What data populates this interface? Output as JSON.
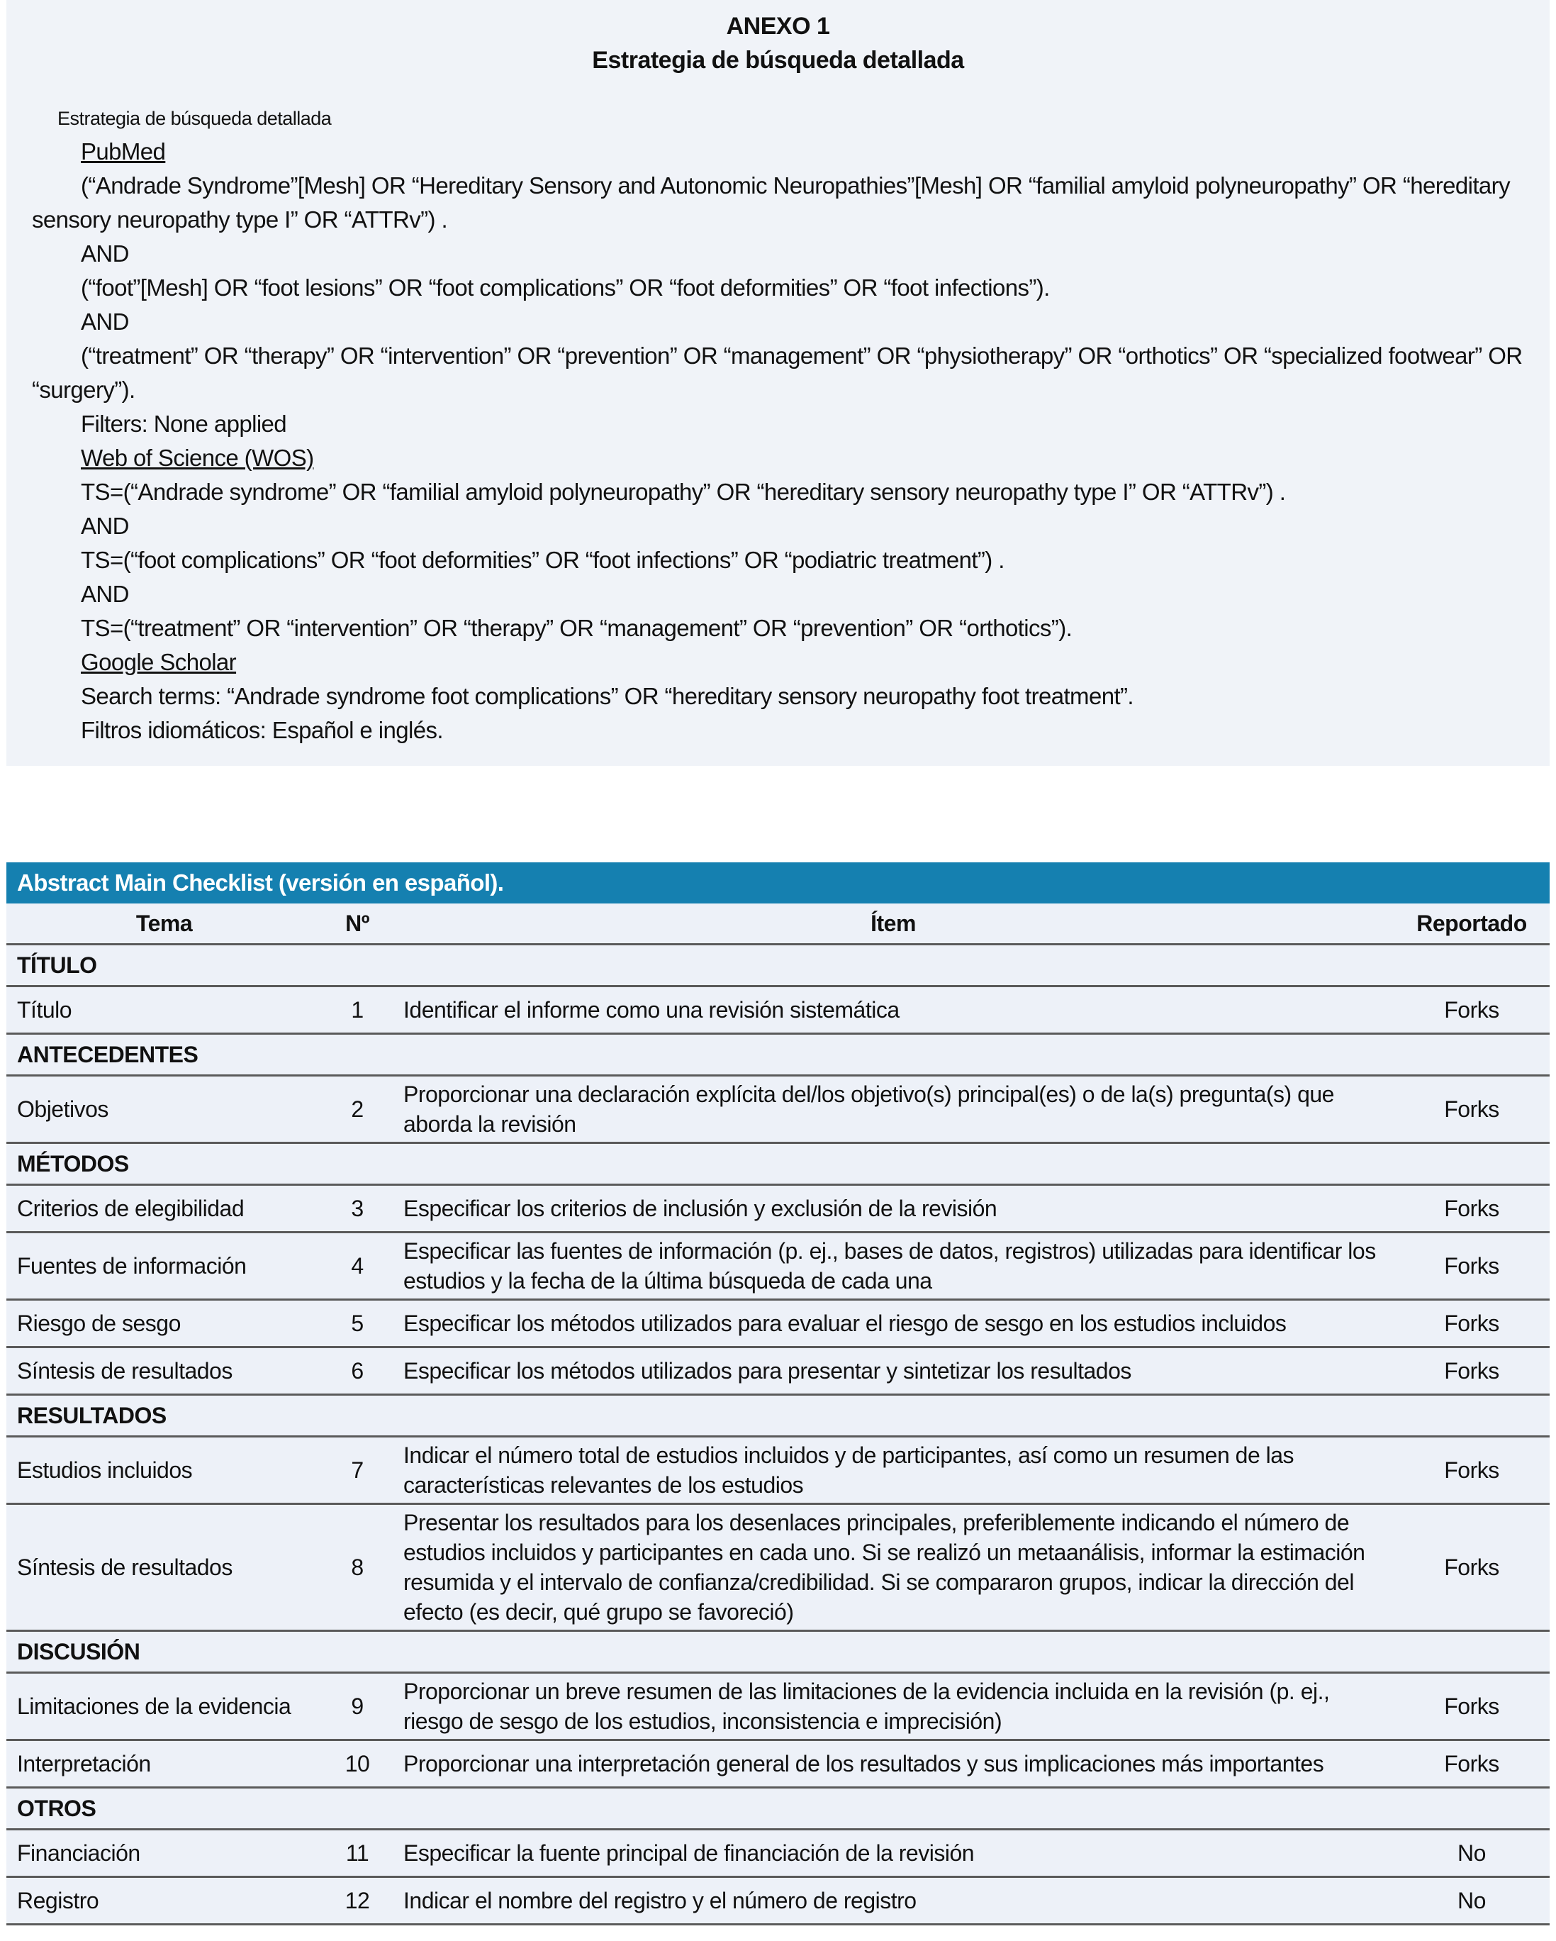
{
  "annex": {
    "title": "ANEXO 1",
    "subtitle": "Estrategia de búsqueda detallada",
    "label": "Estrategia de búsqueda detallada",
    "lines": [
      {
        "text": "PubMed",
        "underline": true
      },
      {
        "text": "(“Andrade Syndrome”[Mesh] OR “Hereditary Sensory and Autonomic Neuropathies”[Mesh] OR “familial amyloid polyneuropathy” OR “hereditary sensory neuropathy type I” OR “ATTRv”) ."
      },
      {
        "text": "AND"
      },
      {
        "text": "(“foot”[Mesh] OR “foot lesions” OR “foot complications” OR “foot deformities” OR “foot infections”)."
      },
      {
        "text": "AND"
      },
      {
        "text": "(“treatment” OR “therapy” OR “intervention” OR “prevention” OR “management” OR “physiotherapy” OR “orthotics” OR “specialized footwear” OR “surgery”)."
      },
      {
        "text": "Filters: None applied"
      },
      {
        "text": "Web of Science (WOS)",
        "underline": true
      },
      {
        "text": "TS=(“Andrade syndrome” OR “familial amyloid polyneuropathy” OR “hereditary sensory neuropathy type I” OR “ATTRv”) ."
      },
      {
        "text": "AND"
      },
      {
        "text": "TS=(“foot complications” OR “foot deformities” OR “foot infections” OR “podiatric treatment”) ."
      },
      {
        "text": "AND"
      },
      {
        "text": "TS=(“treatment” OR “intervention” OR “therapy” OR “management” OR “prevention” OR “orthotics”)."
      },
      {
        "text": "Google Scholar",
        "underline": true
      },
      {
        "text": "Search terms: “Andrade syndrome foot complications” OR “hereditary sensory neuropathy foot treatment”."
      },
      {
        "text": "Filtros idiomáticos: Español e inglés."
      }
    ]
  },
  "checklist": {
    "caption": "Abstract Main Checklist (versión en español).",
    "headers": [
      "Tema",
      "Nº",
      "Ítem",
      "Reportado"
    ],
    "rows": [
      {
        "section": "TÍTULO"
      },
      {
        "tema": "Título",
        "n": "1",
        "item": "Identificar el informe como una revisión sistemática",
        "rep": "Forks"
      },
      {
        "section": "ANTECEDENTES"
      },
      {
        "tema": "Objetivos",
        "n": "2",
        "item": "Proporcionar una declaración explícita del/los objetivo(s) principal(es) o de la(s) pregunta(s) que aborda la revisión",
        "rep": "Forks"
      },
      {
        "section": "MÉTODOS"
      },
      {
        "tema": "Criterios de elegibilidad",
        "n": "3",
        "item": "Especificar los criterios de inclusión y exclusión de la revisión",
        "rep": "Forks"
      },
      {
        "tema": "Fuentes de información",
        "n": "4",
        "item": "Especificar las fuentes de información (p. ej., bases de datos, registros) utilizadas para identificar los estudios y la fecha de la última búsqueda de cada una",
        "rep": "Forks"
      },
      {
        "tema": "Riesgo de sesgo",
        "n": "5",
        "item": "Especificar los métodos utilizados para evaluar el riesgo de sesgo en los estudios incluidos",
        "rep": "Forks"
      },
      {
        "tema": "Síntesis de resultados",
        "n": "6",
        "item": "Especificar los métodos utilizados para presentar y sintetizar los resultados",
        "rep": "Forks"
      },
      {
        "section": "RESULTADOS"
      },
      {
        "tema": "Estudios incluidos",
        "n": "7",
        "item": "Indicar el número total de estudios incluidos y de participantes, así como un resumen de las características relevantes de los estudios",
        "rep": "Forks"
      },
      {
        "tema": "Síntesis de resultados",
        "n": "8",
        "item": "Presentar los resultados para los desenlaces principales, preferiblemente indicando el número de estudios incluidos y participantes en cada uno. Si se realizó un metaanálisis, informar la estimación resumida y el intervalo de confianza/credibilidad. Si se compararon grupos, indicar la dirección del efecto (es decir, qué grupo se favoreció)",
        "rep": "Forks"
      },
      {
        "section": "DISCUSIÓN"
      },
      {
        "tema": "Limitaciones de la evidencia",
        "n": "9",
        "item": "Proporcionar un breve resumen de las limitaciones de la evidencia incluida en la revisión (p. ej., riesgo de sesgo de los estudios, inconsistencia e imprecisión)",
        "rep": "Forks"
      },
      {
        "tema": "Interpretación",
        "n": "10",
        "item": "Proporcionar una interpretación general de los resultados y sus implicaciones más importantes",
        "rep": "Forks"
      },
      {
        "section": "OTROS"
      },
      {
        "tema": "Financiación",
        "n": "11",
        "item": "Especificar la fuente principal de financiación de la revisión",
        "rep": "No"
      },
      {
        "tema": "Registro",
        "n": "12",
        "item": "Indicar el nombre del registro y el número de registro",
        "rep": "No"
      }
    ]
  },
  "colors": {
    "caption_bg": "#1580b0",
    "table_bg": "#edf1f8",
    "annex_bg": "#f0f3f8"
  }
}
